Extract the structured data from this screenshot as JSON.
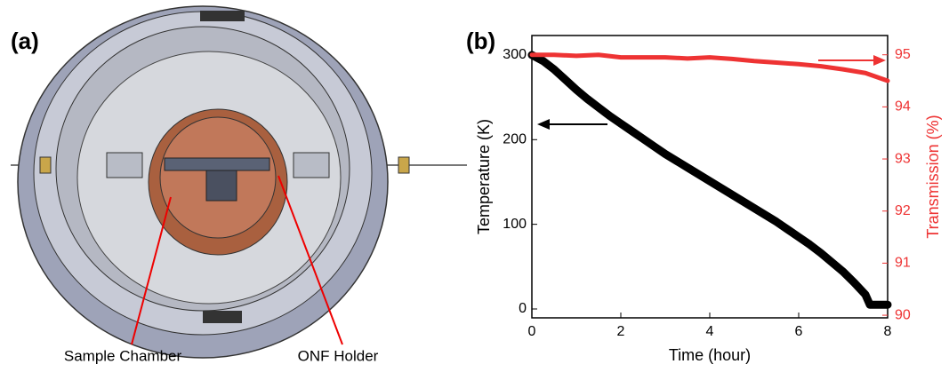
{
  "panel_labels": [
    "(a)",
    "(b)"
  ],
  "annotations": [
    "Sample Chamber",
    "ONF Holder"
  ],
  "chart_data": {
    "type": "line",
    "x_label": "Time (hour)",
    "y_label": "Temperature (K)",
    "y2_label": "Transmission (%)",
    "xlim": [
      0,
      8
    ],
    "xticks": [
      0,
      2,
      4,
      6,
      8
    ],
    "ylim": [
      -10.5,
      323
    ],
    "yticks": [
      0,
      100,
      200,
      300
    ],
    "y2lim": [
      89.95,
      95.37
    ],
    "y2ticks": [
      90,
      91,
      92,
      93,
      94,
      95
    ],
    "series": [
      {
        "name": "Temperature (K)",
        "color": "#000000",
        "x": [
          0,
          0.25,
          0.5,
          0.75,
          1,
          1.25,
          1.5,
          1.75,
          2,
          2.25,
          2.5,
          2.75,
          3,
          3.25,
          3.5,
          3.75,
          4,
          4.25,
          4.5,
          4.75,
          5,
          5.25,
          5.5,
          5.75,
          6,
          6.25,
          6.5,
          6.75,
          7,
          7.25,
          7.5,
          7.6,
          7.75,
          8
        ],
        "values": [
          300,
          293,
          283,
          271,
          259,
          248,
          238,
          228,
          219,
          210,
          201,
          192,
          183,
          175,
          167,
          159,
          151,
          143,
          135,
          127,
          119,
          111,
          103,
          94,
          85,
          76,
          66,
          55,
          44,
          31,
          17,
          5,
          5,
          5
        ]
      },
      {
        "name": "Transmission (%)",
        "color": "#ee3333",
        "axis": "y2",
        "x": [
          0,
          0.5,
          1,
          1.5,
          2,
          2.5,
          3,
          3.5,
          4,
          4.5,
          5,
          5.5,
          6,
          6.5,
          7,
          7.5,
          8
        ],
        "values": [
          95.0,
          95.0,
          94.98,
          95.0,
          94.95,
          94.95,
          94.95,
          94.93,
          94.95,
          94.92,
          94.88,
          94.85,
          94.82,
          94.78,
          94.72,
          94.65,
          94.5
        ]
      }
    ]
  }
}
